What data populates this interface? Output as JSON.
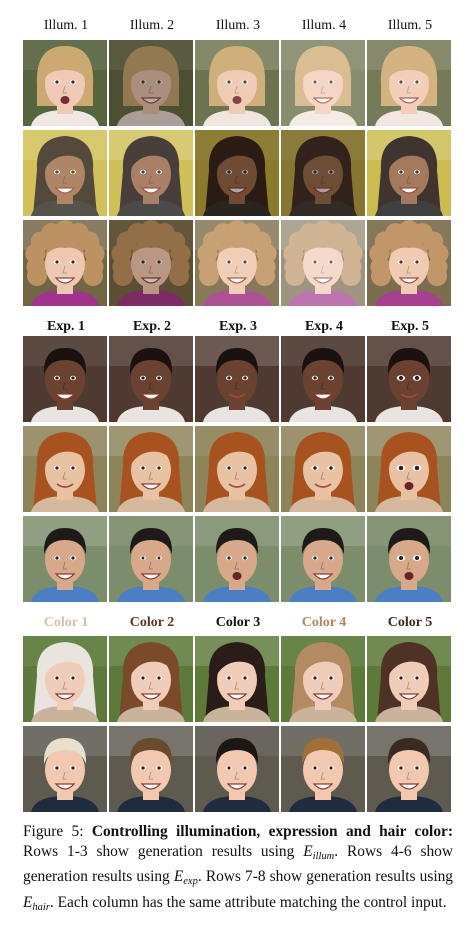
{
  "groups": [
    {
      "id": "illum",
      "labels": [
        "Illum. 1",
        "Illum. 2",
        "Illum. 3",
        "Illum. 4",
        "Illum. 5"
      ],
      "bold": false,
      "rows": [
        {
          "skin": "#f0c8b4",
          "hair": "#c9a56a",
          "hairStyle": "bob",
          "bg": "#4f5d35",
          "shirt": "#efe7e4",
          "light": [
            "#ffffff",
            "#4a3b30",
            "#f2dcc8",
            "#fff4e6",
            "#ffe9d4"
          ],
          "lightAlpha": [
            0.05,
            0.42,
            0.18,
            0.32,
            0.22
          ]
        },
        {
          "skin": "#9a6a4a",
          "hair": "#2a1e18",
          "hairStyle": "long",
          "bg": "#c7b53c",
          "shirt": "#2b2b2b",
          "light": [
            "#fff4d0",
            "#ffffff",
            "#2a1a10",
            "#3a2a20",
            "#ffffff"
          ],
          "lightAlpha": [
            0.2,
            0.15,
            0.38,
            0.45,
            0.1
          ]
        },
        {
          "skin": "#efc6ae",
          "hair": "#b98d5a",
          "hairStyle": "curly",
          "bg": "#6a5d3c",
          "shirt": "#9b2a86",
          "light": [
            "#ffffff",
            "#3a2a1f",
            "#fff1d8",
            "#ffffff",
            "#ffe8d6"
          ],
          "lightAlpha": [
            0.05,
            0.3,
            0.2,
            0.35,
            0.12
          ]
        }
      ]
    },
    {
      "id": "exp",
      "labels": [
        "Exp. 1",
        "Exp. 2",
        "Exp. 3",
        "Exp. 4",
        "Exp. 5"
      ],
      "bold": true,
      "rows": [
        {
          "skin": "#6b4230",
          "hair": "#1a1210",
          "hairStyle": "short",
          "bg": "#4f3a32",
          "shirt": "#e8e4e2",
          "mouth": [
            "grin",
            "grin",
            "smile",
            "grin",
            "smile"
          ],
          "eyes": [
            1,
            1,
            1,
            1,
            1.3
          ]
        },
        {
          "skin": "#e9c1a3",
          "hair": "#a8531f",
          "hairStyle": "wavy",
          "bg": "#8d8459",
          "shirt": "#d6b89e",
          "mouth": [
            "smile",
            "grin",
            "smile",
            "smile",
            "open"
          ],
          "eyes": [
            1,
            1,
            1,
            1.1,
            1.4
          ]
        },
        {
          "skin": "#d7a889",
          "hair": "#1e1a18",
          "hairStyle": "short",
          "bg": "#7b8d6a",
          "shirt": "#4a7fc3",
          "mouth": [
            "grin",
            "grin",
            "open",
            "grin",
            "open"
          ],
          "eyes": [
            1,
            0.9,
            1,
            1,
            1.3
          ]
        }
      ]
    },
    {
      "id": "color",
      "labels": [
        "Color 1",
        "Color 2",
        "Color 3",
        "Color 4",
        "Color 5"
      ],
      "labelColors": [
        "#d7bfa7",
        "#5a3a22",
        "#111111",
        "#b08560",
        "#3a2a22"
      ],
      "bold": true,
      "rows": [
        {
          "skin": "#f0cdb8",
          "hairStyle": "long",
          "bg": "#5d7a3a",
          "shirt": "#c9b39a",
          "hairColors": [
            "#e9e4de",
            "#7a4a2a",
            "#2a1c18",
            "#b48a62",
            "#4e3226"
          ]
        },
        {
          "skin": "#f2c9ae",
          "hairStyle": "short",
          "bg": "#5e5a50",
          "shirt": "#1f2c40",
          "hairColors": [
            "#e8dfcf",
            "#6b4a2e",
            "#1c1715",
            "#a07038",
            "#3a2a20"
          ]
        }
      ]
    }
  ],
  "caption": {
    "figure_label": "Figure 5:",
    "bold_title": "Controlling illumination, expression and hair color:",
    "part1": "Rows 1-3 show generation results using",
    "sym_illum": "E",
    "sub_illum": "illum",
    "part2": ". Rows 4-6 show generation results using",
    "sym_exp": "E",
    "sub_exp": "exp",
    "part3": ". Rows 7-8 show generation results using",
    "sym_hair": "E",
    "sub_hair": "hair",
    "part4": ". Each column has the same attribute matching the control input."
  }
}
